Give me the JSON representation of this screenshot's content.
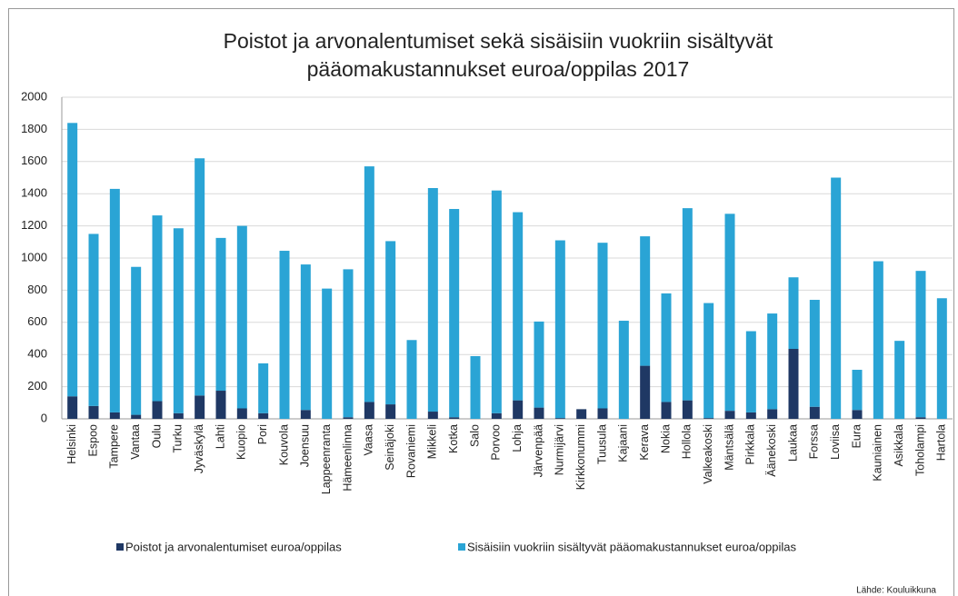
{
  "chart_data": {
    "type": "bar",
    "stacked": true,
    "title": [
      "Poistot ja arvonalentumiset sekä sisäisiin vuokriin sisältyvät",
      "pääomakustannukset euroa/oppilas 2017"
    ],
    "categories": [
      "Helsinki",
      "Espoo",
      "Tampere",
      "Vantaa",
      "Oulu",
      "Turku",
      "Jyväskylä",
      "Lahti",
      "Kuopio",
      "Pori",
      "Kouvola",
      "Joensuu",
      "Lappeenranta",
      "Hämeenlinna",
      "Vaasa",
      "Seinäjoki",
      "Rovaniemi",
      "Mikkeli",
      "Kotka",
      "Salo",
      "Porvoo",
      "Lohja",
      "Järvenpää",
      "Nurmijärvi",
      "Kirkkonummi",
      "Tuusula",
      "Kajaani",
      "Kerava",
      "Nokia",
      "Hollola",
      "Valkeakoski",
      "Mäntsälä",
      "Pirkkala",
      "Äänekoski",
      "Laukaa",
      "Forssa",
      "Loviisa",
      "Eura",
      "Kauniainen",
      "Asikkala",
      "Toholampi",
      "Hartola"
    ],
    "series": [
      {
        "name": "Poistot ja arvonalentumiset euroa/oppilas",
        "color": "#1f3864",
        "values": [
          140,
          80,
          40,
          25,
          110,
          35,
          145,
          175,
          65,
          35,
          0,
          55,
          0,
          10,
          105,
          90,
          0,
          45,
          10,
          0,
          35,
          115,
          70,
          5,
          60,
          65,
          0,
          330,
          105,
          115,
          5,
          50,
          40,
          60,
          435,
          75,
          0,
          55,
          0,
          0,
          10,
          0
        ]
      },
      {
        "name": "Sisäisiin vuokriin sisältyvät pääomakustannukset euroa/oppilas",
        "color": "#2aa4d5",
        "values": [
          1700,
          1070,
          1390,
          920,
          1155,
          1150,
          1475,
          950,
          1135,
          310,
          1045,
          905,
          810,
          920,
          1465,
          1015,
          490,
          1390,
          1295,
          390,
          1385,
          1170,
          535,
          1105,
          0,
          1030,
          610,
          805,
          675,
          1195,
          715,
          1225,
          505,
          595,
          445,
          665,
          1500,
          250,
          980,
          485,
          910,
          750
        ]
      }
    ],
    "ylim": [
      0,
      2000
    ],
    "yticks": [
      0,
      200,
      400,
      600,
      800,
      1000,
      1200,
      1400,
      1600,
      1800,
      2000
    ],
    "grid": true,
    "legend": "bottom",
    "source": "Lähde: Kouluikkuna"
  }
}
